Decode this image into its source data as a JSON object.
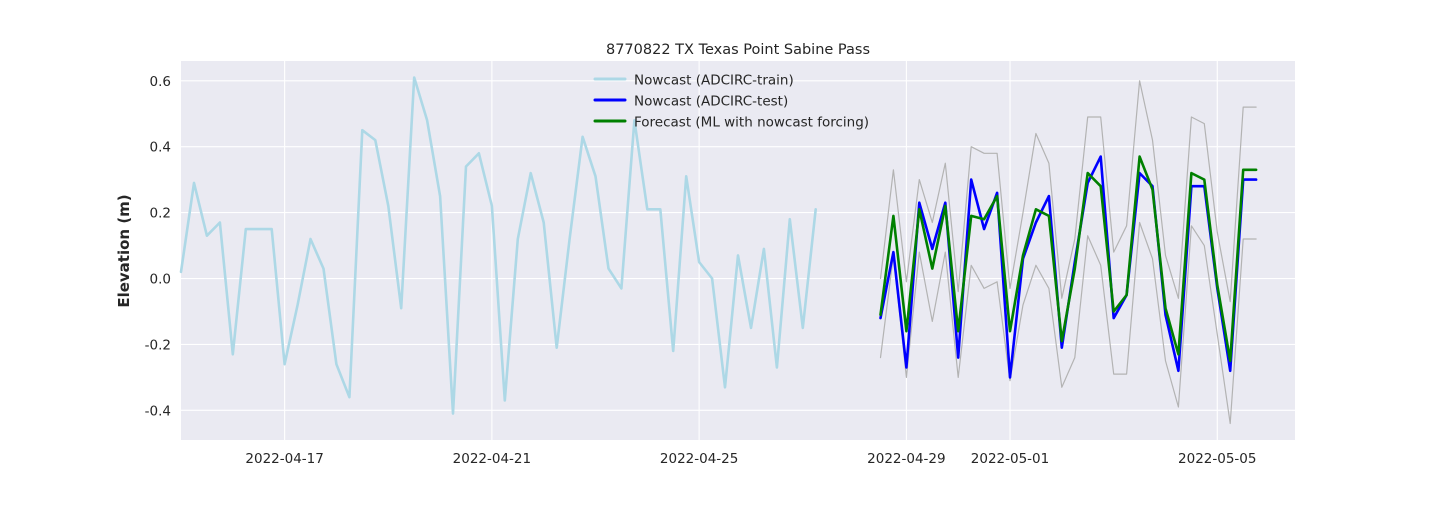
{
  "chart_data": {
    "type": "line",
    "title": "8770822 TX Texas Point Sabine Pass",
    "xlabel": "",
    "ylabel": "Elevation (m)",
    "xlim": [
      "2022-04-15T00:00",
      "2022-05-06T12:00"
    ],
    "ylim": [
      -0.49,
      0.66
    ],
    "grid": true,
    "legend_position": "top-center",
    "x_ticks": [
      "2022-04-17",
      "2022-04-21",
      "2022-04-25",
      "2022-04-29",
      "2022-05-01",
      "2022-05-05"
    ],
    "y_ticks": [
      -0.4,
      -0.2,
      0.0,
      0.2,
      0.4,
      0.6
    ],
    "legend": [
      {
        "label": "Nowcast (ADCIRC-train)",
        "color": "#add8e6"
      },
      {
        "label": "Nowcast (ADCIRC-test)",
        "color": "#0000ff"
      },
      {
        "label": "Forecast (ML with nowcast forcing)",
        "color": "#008000"
      }
    ],
    "series": [
      {
        "name": "Nowcast (ADCIRC-train)",
        "color": "#add8e6",
        "x": [
          "2022-04-15T00:00",
          "2022-04-15T06:00",
          "2022-04-15T12:00",
          "2022-04-15T18:00",
          "2022-04-16T00:00",
          "2022-04-16T06:00",
          "2022-04-16T12:00",
          "2022-04-16T18:00",
          "2022-04-17T00:00",
          "2022-04-17T06:00",
          "2022-04-17T12:00",
          "2022-04-17T18:00",
          "2022-04-18T00:00",
          "2022-04-18T06:00",
          "2022-04-18T12:00",
          "2022-04-18T18:00",
          "2022-04-19T00:00",
          "2022-04-19T06:00",
          "2022-04-19T12:00",
          "2022-04-19T18:00",
          "2022-04-20T00:00",
          "2022-04-20T06:00",
          "2022-04-20T12:00",
          "2022-04-20T18:00",
          "2022-04-21T00:00",
          "2022-04-21T06:00",
          "2022-04-21T12:00",
          "2022-04-21T18:00",
          "2022-04-22T00:00",
          "2022-04-22T06:00",
          "2022-04-22T12:00",
          "2022-04-22T18:00",
          "2022-04-23T00:00",
          "2022-04-23T06:00",
          "2022-04-23T12:00",
          "2022-04-23T18:00",
          "2022-04-24T00:00",
          "2022-04-24T06:00",
          "2022-04-24T12:00",
          "2022-04-24T18:00",
          "2022-04-25T00:00",
          "2022-04-25T06:00",
          "2022-04-25T12:00",
          "2022-04-25T18:00",
          "2022-04-26T00:00",
          "2022-04-26T06:00",
          "2022-04-26T12:00",
          "2022-04-26T18:00",
          "2022-04-27T00:00",
          "2022-04-27T06:00",
          "2022-04-27T12:00",
          "2022-04-27T18:00",
          "2022-04-28T00:00",
          "2022-04-28T06:00"
        ],
        "values": [
          0.02,
          0.29,
          0.13,
          0.17,
          -0.23,
          0.15,
          0.15,
          0.15,
          -0.26,
          -0.08,
          0.12,
          0.03,
          -0.26,
          -0.36,
          0.45,
          0.42,
          0.22,
          -0.09,
          0.61,
          0.48,
          0.25,
          -0.41,
          0.34,
          0.38,
          0.22,
          -0.37,
          0.12,
          0.32,
          0.17,
          -0.21,
          0.12,
          0.43,
          0.31,
          0.03,
          -0.03,
          0.48,
          0.21,
          0.21,
          -0.22,
          0.31,
          0.05,
          0.0,
          -0.33,
          0.07,
          -0.15,
          0.09,
          -0.27,
          0.18,
          -0.15,
          0.21,
          null,
          null,
          null,
          null
        ]
      },
      {
        "name": "Nowcast (ADCIRC-test)",
        "color": "#0000ff",
        "x": [
          "2022-04-28T12:00",
          "2022-04-28T18:00",
          "2022-04-29T00:00",
          "2022-04-29T06:00",
          "2022-04-29T12:00",
          "2022-04-29T18:00",
          "2022-04-30T00:00",
          "2022-04-30T06:00",
          "2022-04-30T12:00",
          "2022-04-30T18:00",
          "2022-05-01T00:00",
          "2022-05-01T06:00",
          "2022-05-01T12:00",
          "2022-05-01T18:00",
          "2022-05-02T00:00",
          "2022-05-02T06:00",
          "2022-05-02T12:00",
          "2022-05-02T18:00",
          "2022-05-03T00:00",
          "2022-05-03T06:00",
          "2022-05-03T12:00",
          "2022-05-03T18:00",
          "2022-05-04T00:00",
          "2022-05-04T06:00",
          "2022-05-04T12:00",
          "2022-05-04T18:00",
          "2022-05-05T00:00",
          "2022-05-05T06:00",
          "2022-05-05T12:00",
          "2022-05-05T18:00"
        ],
        "values": [
          -0.12,
          0.08,
          -0.27,
          0.23,
          0.09,
          0.23,
          -0.24,
          0.3,
          0.15,
          0.26,
          -0.3,
          0.06,
          0.17,
          0.25,
          -0.21,
          0.05,
          0.29,
          0.37,
          -0.12,
          -0.05,
          0.32,
          0.28,
          -0.11,
          -0.28,
          0.28,
          0.28,
          -0.03,
          -0.28,
          0.3,
          0.3
        ]
      },
      {
        "name": "Forecast (ML with nowcast forcing)",
        "color": "#008000",
        "x": [
          "2022-04-28T12:00",
          "2022-04-28T18:00",
          "2022-04-29T00:00",
          "2022-04-29T06:00",
          "2022-04-29T12:00",
          "2022-04-29T18:00",
          "2022-04-30T00:00",
          "2022-04-30T06:00",
          "2022-04-30T12:00",
          "2022-04-30T18:00",
          "2022-05-01T00:00",
          "2022-05-01T06:00",
          "2022-05-01T12:00",
          "2022-05-01T18:00",
          "2022-05-02T00:00",
          "2022-05-02T06:00",
          "2022-05-02T12:00",
          "2022-05-02T18:00",
          "2022-05-03T00:00",
          "2022-05-03T06:00",
          "2022-05-03T12:00",
          "2022-05-03T18:00",
          "2022-05-04T00:00",
          "2022-05-04T06:00",
          "2022-05-04T12:00",
          "2022-05-04T18:00",
          "2022-05-05T00:00",
          "2022-05-05T06:00",
          "2022-05-05T12:00",
          "2022-05-05T18:00"
        ],
        "values": [
          -0.11,
          0.19,
          -0.16,
          0.21,
          0.03,
          0.22,
          -0.16,
          0.19,
          0.18,
          0.25,
          -0.16,
          0.07,
          0.21,
          0.19,
          -0.19,
          0.03,
          0.32,
          0.28,
          -0.1,
          -0.05,
          0.37,
          0.27,
          -0.09,
          -0.23,
          0.32,
          0.3,
          -0.02,
          -0.25,
          0.33,
          0.33
        ]
      },
      {
        "name": "",
        "color": "#b3b3b3",
        "x": [
          "2022-04-28T12:00",
          "2022-04-28T18:00",
          "2022-04-29T00:00",
          "2022-04-29T06:00",
          "2022-04-29T12:00",
          "2022-04-29T18:00",
          "2022-04-30T00:00",
          "2022-04-30T06:00",
          "2022-04-30T12:00",
          "2022-04-30T18:00",
          "2022-05-01T00:00",
          "2022-05-01T06:00",
          "2022-05-01T12:00",
          "2022-05-01T18:00",
          "2022-05-02T00:00",
          "2022-05-02T06:00",
          "2022-05-02T12:00",
          "2022-05-02T18:00",
          "2022-05-03T00:00",
          "2022-05-03T06:00",
          "2022-05-03T12:00",
          "2022-05-03T18:00",
          "2022-05-04T00:00",
          "2022-05-04T06:00",
          "2022-05-04T12:00",
          "2022-05-04T18:00",
          "2022-05-05T00:00",
          "2022-05-05T06:00",
          "2022-05-05T12:00",
          "2022-05-05T18:00"
        ],
        "values": [
          0.0,
          0.33,
          -0.01,
          0.3,
          0.17,
          0.35,
          -0.04,
          0.4,
          0.38,
          0.38,
          -0.03,
          0.2,
          0.44,
          0.35,
          -0.06,
          0.12,
          0.49,
          0.49,
          0.08,
          0.16,
          0.6,
          0.42,
          0.07,
          -0.06,
          0.49,
          0.47,
          0.14,
          -0.07,
          0.52,
          0.52
        ]
      },
      {
        "name": "",
        "color": "#b3b3b3",
        "x": [
          "2022-04-28T12:00",
          "2022-04-28T18:00",
          "2022-04-29T00:00",
          "2022-04-29T06:00",
          "2022-04-29T12:00",
          "2022-04-29T18:00",
          "2022-04-30T00:00",
          "2022-04-30T06:00",
          "2022-04-30T12:00",
          "2022-04-30T18:00",
          "2022-05-01T00:00",
          "2022-05-01T06:00",
          "2022-05-01T12:00",
          "2022-05-01T18:00",
          "2022-05-02T00:00",
          "2022-05-02T06:00",
          "2022-05-02T12:00",
          "2022-05-02T18:00",
          "2022-05-03T00:00",
          "2022-05-03T06:00",
          "2022-05-03T12:00",
          "2022-05-03T18:00",
          "2022-05-04T00:00",
          "2022-05-04T06:00",
          "2022-05-04T12:00",
          "2022-05-04T18:00",
          "2022-05-05T00:00",
          "2022-05-05T06:00",
          "2022-05-05T12:00",
          "2022-05-05T18:00"
        ],
        "values": [
          -0.24,
          0.07,
          -0.3,
          0.08,
          -0.13,
          0.08,
          -0.3,
          0.04,
          -0.03,
          -0.01,
          -0.31,
          -0.08,
          0.04,
          -0.03,
          -0.33,
          -0.24,
          0.13,
          0.04,
          -0.29,
          -0.29,
          0.17,
          0.06,
          -0.25,
          -0.39,
          0.16,
          0.1,
          -0.17,
          -0.44,
          0.12,
          0.12
        ]
      }
    ]
  }
}
